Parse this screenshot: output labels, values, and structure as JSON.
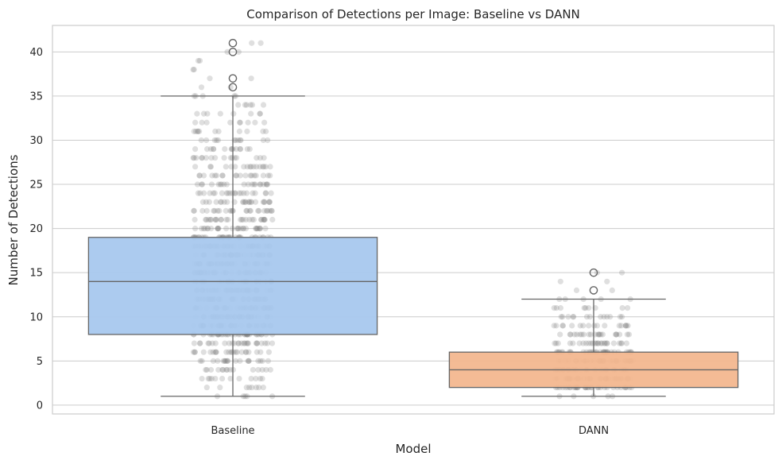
{
  "chart_data": {
    "type": "box",
    "title": "Comparison of Detections per Image: Baseline vs DANN",
    "xlabel": "Model",
    "ylabel": "Number of Detections",
    "ylim": [
      -1,
      43
    ],
    "yticks": [
      0,
      5,
      10,
      15,
      20,
      25,
      30,
      35,
      40
    ],
    "grid": "horizontal",
    "categories": [
      "Baseline",
      "DANN"
    ],
    "series": [
      {
        "category": "Baseline",
        "color": "#a8c8ee",
        "whisker_low": 1,
        "q1": 8,
        "median": 14,
        "q3": 19,
        "whisker_high": 35,
        "outliers": [
          36,
          37,
          40,
          41
        ],
        "points_min": 1,
        "points_max": 41
      },
      {
        "category": "DANN",
        "color": "#f3b78f",
        "whisker_low": 1,
        "q1": 2,
        "median": 4,
        "q3": 6,
        "whisker_high": 12,
        "outliers": [
          13,
          15
        ],
        "points_min": 1,
        "points_max": 15
      }
    ]
  }
}
